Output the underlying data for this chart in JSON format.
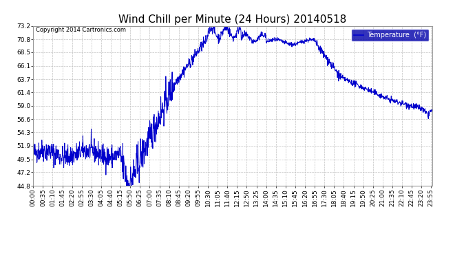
{
  "title": "Wind Chill per Minute (24 Hours) 20140518",
  "copyright_text": "Copyright 2014 Cartronics.com",
  "legend_label": "Temperature  (°F)",
  "ylabel_ticks": [
    44.8,
    47.2,
    49.5,
    51.9,
    54.3,
    56.6,
    59.0,
    61.4,
    63.7,
    66.1,
    68.5,
    70.8,
    73.2
  ],
  "ymin": 44.8,
  "ymax": 73.2,
  "line_color": "#0000cc",
  "background_color": "#ffffff",
  "plot_bg_color": "#ffffff",
  "grid_color": "#bbbbbb",
  "title_fontsize": 11,
  "tick_fontsize": 6.5,
  "total_minutes": 1440,
  "x_label_every": 35,
  "figwidth": 6.9,
  "figheight": 3.75,
  "dpi": 100
}
